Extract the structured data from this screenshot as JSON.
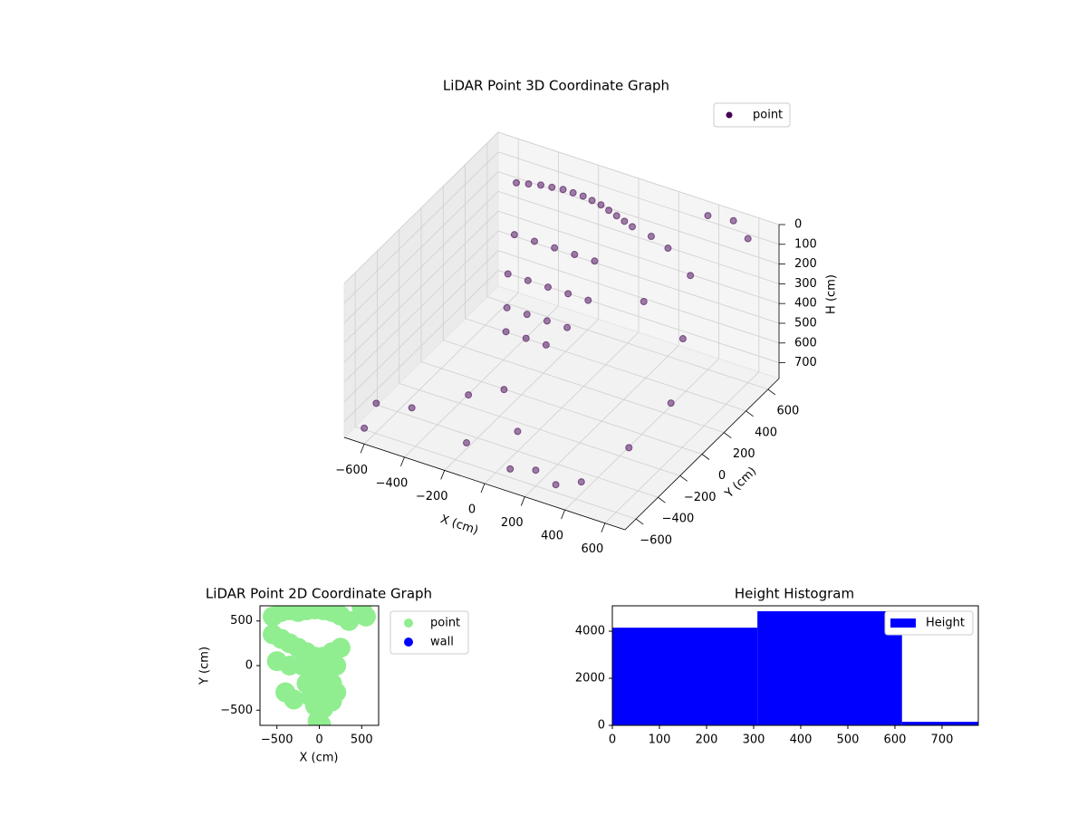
{
  "chart_data": [
    {
      "type": "scatter3d",
      "title": "LiDAR Point 3D Coordinate Graph",
      "xlabel": "X (cm)",
      "ylabel": "Y (cm)",
      "zlabel": "H (cm)",
      "xlim": [
        -700,
        700
      ],
      "ylim": [
        -700,
        700
      ],
      "zlim": [
        0,
        780
      ],
      "zinverted": true,
      "xticks": [
        {
          "value": -600,
          "label": "−600"
        },
        {
          "value": -400,
          "label": "−400"
        },
        {
          "value": -200,
          "label": "−200"
        },
        0,
        200,
        400,
        600
      ],
      "yticks": [
        {
          "value": -600,
          "label": "−600"
        },
        {
          "value": -400,
          "label": "−400"
        },
        {
          "value": -200,
          "label": "−200"
        },
        0,
        200,
        400,
        600
      ],
      "zticks": [
        0,
        100,
        200,
        300,
        400,
        500,
        600,
        700
      ],
      "legend": "upper right",
      "series": [
        {
          "name": "point",
          "color": "#440154",
          "x": [
            -500,
            -450,
            -400,
            -350,
            -300,
            -250,
            -200,
            -150,
            -100,
            -50,
            0,
            50,
            100,
            200,
            300,
            -400,
            -300,
            -200,
            -100,
            0,
            -350,
            -250,
            -150,
            -50,
            50,
            -300,
            -200,
            -100,
            0,
            -250,
            -150,
            -50,
            400,
            500,
            600,
            300,
            450,
            550,
            -650,
            -500,
            -300,
            -150,
            0,
            200,
            400,
            500,
            -600,
            -200,
            100,
            300,
            600
          ],
          "y": [
            500,
            520,
            540,
            550,
            560,
            560,
            560,
            550,
            540,
            520,
            500,
            480,
            460,
            450,
            420,
            300,
            300,
            300,
            300,
            300,
            150,
            150,
            150,
            150,
            150,
            50,
            50,
            50,
            50,
            -50,
            -50,
            -50,
            600,
            650,
            600,
            200,
            350,
            100,
            -500,
            -450,
            -300,
            -250,
            -400,
            -600,
            -550,
            -300,
            -700,
            -500,
            -650,
            -600,
            -100
          ],
          "z": [
            80,
            80,
            80,
            80,
            80,
            80,
            80,
            80,
            80,
            80,
            80,
            80,
            80,
            90,
            100,
            200,
            200,
            200,
            200,
            200,
            300,
            300,
            300,
            300,
            300,
            400,
            400,
            400,
            400,
            450,
            450,
            450,
            0,
            20,
            50,
            250,
            150,
            300,
            700,
            700,
            650,
            600,
            680,
            700,
            720,
            650,
            700,
            750,
            700,
            740,
            500
          ]
        }
      ]
    },
    {
      "type": "scatter",
      "title": "LiDAR Point 2D Coordinate Graph",
      "xlabel": "X (cm)",
      "ylabel": "Y (cm)",
      "xlim": [
        -700,
        700
      ],
      "ylim": [
        -670,
        670
      ],
      "xticks": [
        {
          "value": -500,
          "label": "−500"
        },
        0,
        500
      ],
      "yticks": [
        {
          "value": -500,
          "label": "−500"
        },
        0,
        500
      ],
      "legend": "outside right",
      "series": [
        {
          "name": "point",
          "color": "#90ee90",
          "x": [
            -550,
            -450,
            -350,
            -250,
            -150,
            -50,
            50,
            150,
            250,
            350,
            -550,
            -450,
            -350,
            -250,
            -150,
            -50,
            50,
            150,
            250,
            -500,
            -350,
            -200,
            -100,
            0,
            100,
            200,
            -150,
            -50,
            50,
            150,
            -100,
            0,
            100,
            200,
            -50,
            50,
            150,
            -400,
            -300,
            500,
            550,
            -20,
            20
          ],
          "y": [
            550,
            600,
            620,
            600,
            620,
            630,
            620,
            600,
            560,
            500,
            350,
            300,
            250,
            200,
            150,
            100,
            100,
            150,
            200,
            50,
            0,
            0,
            -50,
            -50,
            -50,
            0,
            -200,
            -250,
            -250,
            -200,
            -350,
            -380,
            -350,
            -300,
            -450,
            -480,
            -400,
            -300,
            -380,
            650,
            550,
            -620,
            -660
          ]
        },
        {
          "name": "wall",
          "color": "#0000ff",
          "x": [],
          "y": []
        }
      ]
    },
    {
      "type": "histogram",
      "title": "Height Histogram",
      "name": "Height",
      "color": "#0000ff",
      "bins": [
        0,
        308,
        615,
        777
      ],
      "values": [
        4150,
        4850,
        150
      ],
      "xlim": [
        0,
        777
      ],
      "ylim": [
        0,
        5080
      ],
      "xticks": [
        0,
        100,
        200,
        300,
        400,
        500,
        600,
        700
      ],
      "yticks": [
        0,
        2000,
        4000
      ],
      "legend": "upper right"
    }
  ]
}
